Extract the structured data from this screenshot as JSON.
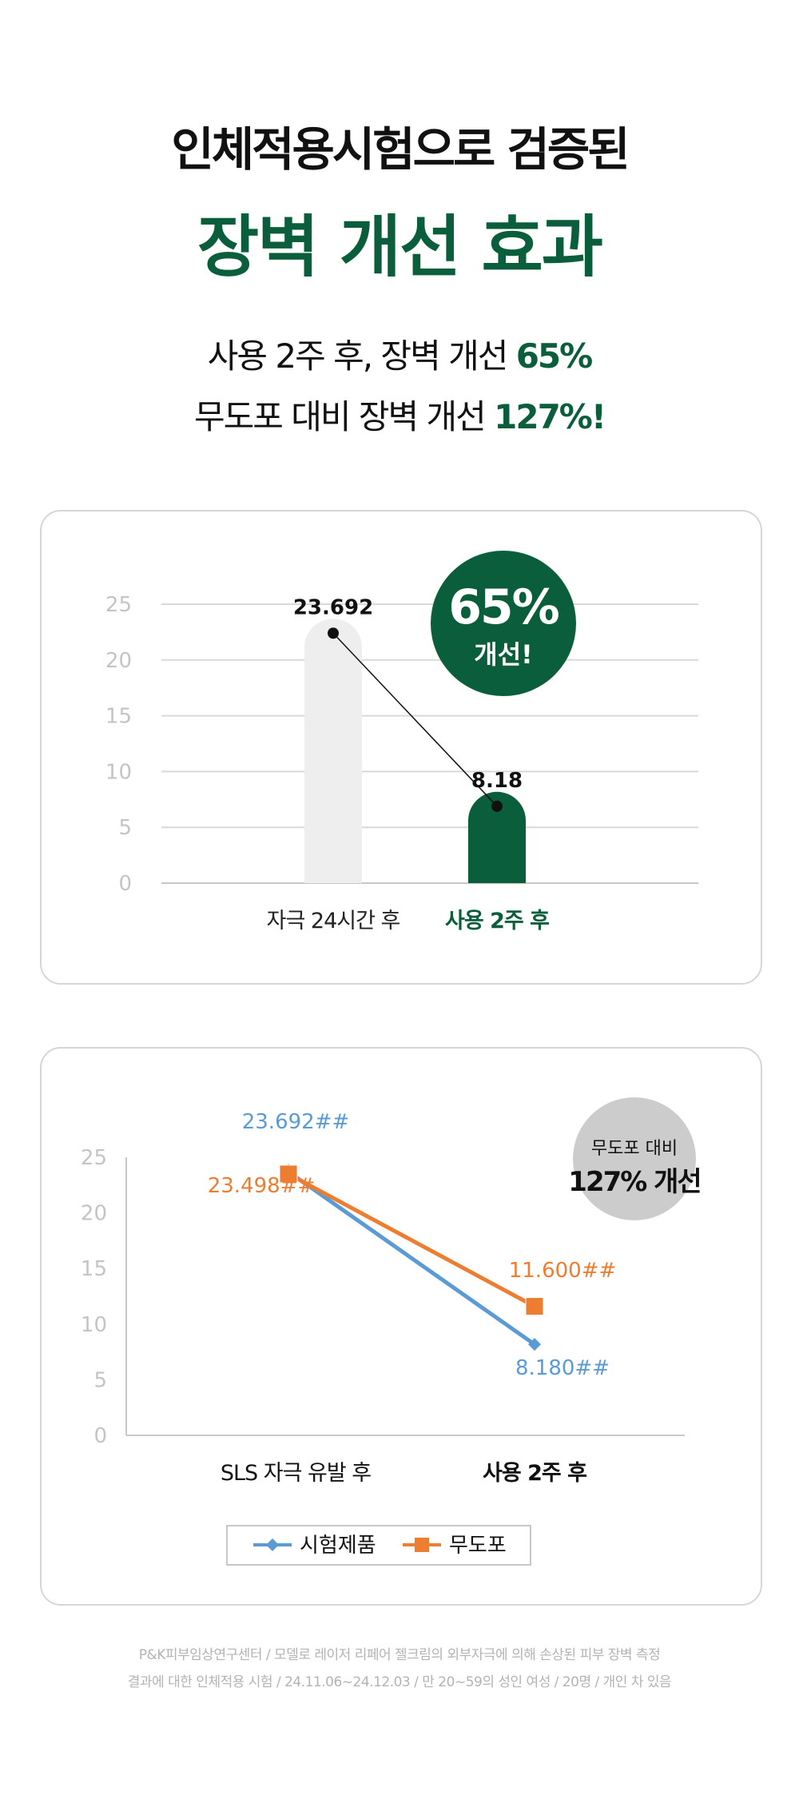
{
  "header": {
    "title_line1": "인체적용시험으로 검증된",
    "title_line2": "장벽 개선 효과",
    "subtitle_line1_text": "사용 2주 후, 장벽 개선 ",
    "subtitle_line1_highlight": "65%",
    "subtitle_line2_text": "무도포 대비 장벽 개선 ",
    "subtitle_line2_highlight": "127%!"
  },
  "colors": {
    "brand_green": "#0b5e3c",
    "bar_gray": "#eeeeee",
    "series_blue": "#5b9bd5",
    "series_orange": "#ed7d31",
    "badge_gray": "#cccccc",
    "axis_text": "#c4c4c4"
  },
  "chart_data": [
    {
      "type": "bar",
      "categories": [
        "자극 24시간 후",
        "사용 2주 후"
      ],
      "values": [
        23.692,
        8.18
      ],
      "value_labels": [
        "23.692",
        "8.18"
      ],
      "ylim": [
        0,
        25
      ],
      "yticks": [
        0,
        5,
        10,
        15,
        20,
        25
      ],
      "grid": true,
      "connector_line": true,
      "badge": {
        "value": "65%",
        "label": "개선!"
      }
    },
    {
      "type": "line",
      "categories": [
        "SLS 자극 유발 후",
        "사용 2주 후"
      ],
      "series": [
        {
          "name": "시험제품",
          "values": [
            23.692,
            8.18
          ],
          "labels": [
            "23.692##",
            "8.180##"
          ],
          "marker": "diamond"
        },
        {
          "name": "무도포",
          "values": [
            23.498,
            11.6
          ],
          "labels": [
            "23.498##",
            "11.600##"
          ],
          "marker": "square"
        }
      ],
      "ylim": [
        0,
        25
      ],
      "yticks": [
        0,
        5,
        10,
        15,
        20,
        25
      ],
      "grid": false,
      "legend_position": "bottom-center",
      "badge": {
        "label": "무도포 대비",
        "value": "127% 개선"
      }
    }
  ],
  "footnote": {
    "line1": "P&K피부임상연구센터 / 모델로 레이저 리페어 젤크림의 외부자극에 의해 손상된 피부 장벽 측정",
    "line2": "결과에 대한 인체적용 시험 / 24.11.06~24.12.03 / 만 20~59의 성인 여성 / 20명 / 개인 차 있음"
  }
}
